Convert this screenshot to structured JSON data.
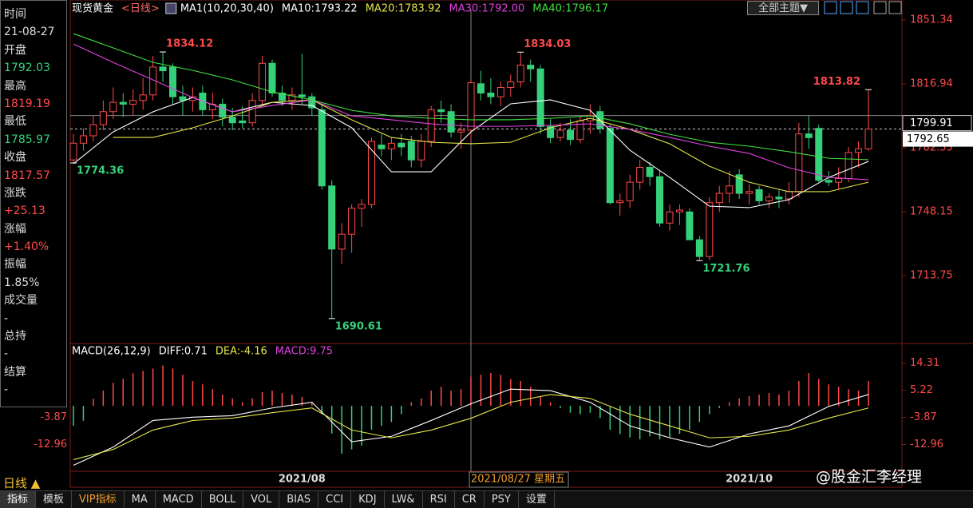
{
  "chart_data": [
    {
      "type": "candlestick",
      "title": "现货黄金",
      "period": "<日线>",
      "indicator": "MA1(10,20,30,40)",
      "categories": [
        null,
        null,
        null,
        null,
        null,
        null,
        null,
        null,
        null,
        null,
        null,
        null,
        null,
        null,
        null,
        null,
        null,
        null,
        null,
        null,
        null,
        null,
        null,
        "2021/08",
        null,
        null,
        null,
        null,
        null,
        null,
        null,
        null,
        null,
        null,
        null,
        null,
        null,
        null,
        null,
        null,
        "2021/08/27 星期五",
        null,
        null,
        null,
        null,
        null,
        null,
        null,
        null,
        null,
        null,
        null,
        null,
        null,
        null,
        null,
        null,
        null,
        null,
        null,
        null,
        null,
        null,
        null,
        null,
        null,
        null,
        null,
        "2021/10",
        null,
        null,
        null,
        null,
        null,
        null,
        null,
        null,
        null,
        null,
        null,
        null
      ],
      "open": [
        1776,
        1785,
        1789,
        1795,
        1802,
        1807,
        1806,
        1808,
        1811,
        1826,
        1826,
        1810,
        1808,
        1812,
        1803,
        1806,
        1799,
        1797,
        1796,
        1808,
        1828,
        1812,
        1808,
        1811,
        1810,
        1803,
        1762,
        1728,
        1736,
        1750,
        1752,
        1784,
        1782,
        1785,
        1786,
        1776,
        1786,
        1803,
        1802,
        1791,
        1792.03,
        1817,
        1812,
        1810,
        1815,
        1818,
        1827,
        1825,
        1794,
        1788,
        1792,
        1787,
        1797,
        1802,
        1793,
        1753,
        1754,
        1764,
        1772,
        1767,
        1742,
        1748,
        1748,
        1733,
        1724,
        1753,
        1758,
        1768,
        1758,
        1760,
        1754,
        1756,
        1755,
        1759,
        1790,
        1793,
        1765,
        1764,
        1766,
        1780,
        1782
      ],
      "high": [
        1790,
        1793,
        1800,
        1808,
        1815,
        1812,
        1814,
        1820,
        1832,
        1834.12,
        1828,
        1816,
        1815,
        1816,
        1812,
        1809,
        1804,
        1805,
        1812,
        1832,
        1830,
        1816,
        1815,
        1833,
        1812,
        1806,
        1765,
        1742,
        1752,
        1755,
        1788,
        1790,
        1788,
        1790,
        1789,
        1790,
        1805,
        1808,
        1806,
        1796,
        1819.19,
        1824,
        1820,
        1818,
        1822,
        1834.03,
        1830,
        1827,
        1798,
        1796,
        1798,
        1800,
        1806,
        1805,
        1795,
        1758,
        1768,
        1776,
        1775,
        1770,
        1752,
        1752,
        1750,
        1735,
        1756,
        1762,
        1770,
        1771,
        1763,
        1762,
        1758,
        1760,
        1764,
        1796,
        1800,
        1795,
        1770,
        1772,
        1783,
        1786,
        1813.82
      ],
      "low": [
        1774.36,
        1781,
        1786,
        1792,
        1798,
        1799,
        1800,
        1803,
        1808,
        1818,
        1806,
        1800,
        1802,
        1800,
        1798,
        1794,
        1792,
        1793,
        1794,
        1805,
        1810,
        1805,
        1803,
        1806,
        1800,
        1760,
        1690.61,
        1720,
        1726,
        1740,
        1750,
        1778,
        1776,
        1778,
        1772,
        1772,
        1783,
        1796,
        1788,
        1782,
        1785.97,
        1808,
        1806,
        1805,
        1810,
        1815,
        1818,
        1790,
        1785,
        1786,
        1784,
        1785,
        1790,
        1790,
        1752,
        1746,
        1750,
        1760,
        1762,
        1740,
        1738,
        1741,
        1733,
        1721.76,
        1722,
        1748,
        1753,
        1755,
        1752,
        1752,
        1750,
        1750,
        1752,
        1756,
        1782,
        1764,
        1762,
        1760,
        1764,
        1772,
        1781
      ],
      "close": [
        1785,
        1789,
        1795,
        1802,
        1807,
        1806,
        1808,
        1811,
        1826,
        1824,
        1810,
        1808,
        1810,
        1803,
        1806,
        1799,
        1796,
        1796,
        1808,
        1828,
        1812,
        1808,
        1811,
        1810,
        1804,
        1762,
        1728,
        1736,
        1750,
        1752,
        1786,
        1782,
        1785,
        1783,
        1776,
        1786,
        1803,
        1802,
        1791,
        1792,
        1817.57,
        1812,
        1810,
        1815,
        1818,
        1827,
        1825,
        1794,
        1788,
        1792,
        1787,
        1797,
        1800,
        1793,
        1753,
        1754,
        1764,
        1772,
        1767,
        1742,
        1748,
        1749,
        1733,
        1724,
        1753,
        1758,
        1762,
        1758,
        1759,
        1754,
        1756,
        1755,
        1759,
        1790,
        1788,
        1765,
        1764,
        1766,
        1780,
        1782,
        1792.65
      ],
      "up_color": "#ff4a4a",
      "down_color": "#35d07a",
      "ylim": [
        1677.19,
        1856.93
      ],
      "yticks": [
        1851.34,
        1816.94,
        1782.55,
        1748.15,
        1713.75
      ],
      "overlays": [
        {
          "name": "MA10:1793.22",
          "color": "#ffffff",
          "x": [
            0,
            4,
            8,
            12,
            16,
            20,
            24,
            28,
            32,
            36,
            40,
            44,
            48,
            52,
            56,
            60,
            64,
            68,
            72,
            76,
            80
          ],
          "values": [
            1773.9,
            1791.1,
            1801.9,
            1809.6,
            1801.9,
            1807.0,
            1805.3,
            1793.3,
            1769.6,
            1769.6,
            1791.1,
            1806.2,
            1808.3,
            1802.7,
            1781.2,
            1766.6,
            1751.1,
            1750.3,
            1754.6,
            1766.6,
            1775.2
          ]
        },
        {
          "name": "MA20:1783.92",
          "color": "#e6e64a",
          "x": [
            4,
            8,
            12,
            16,
            20,
            24,
            28,
            32,
            36,
            40,
            44,
            48,
            52,
            56,
            60,
            64,
            68,
            72,
            76,
            80
          ],
          "values": [
            1788.1,
            1788.1,
            1793.3,
            1799.7,
            1807.0,
            1808.3,
            1797.6,
            1788.1,
            1785.5,
            1784.7,
            1785.5,
            1793.3,
            1798.4,
            1792.4,
            1784.7,
            1772.6,
            1764.0,
            1758.9,
            1758.9,
            1764.0
          ]
        },
        {
          "name": "MA30:1792.00",
          "color": "#e040e0",
          "x": [
            0,
            4,
            8,
            12,
            16,
            20,
            24,
            28,
            32,
            36,
            40,
            44,
            48,
            52,
            56,
            60,
            64,
            68,
            72,
            76,
            80
          ],
          "values": [
            1838.4,
            1828.5,
            1819.1,
            1809.6,
            1801.9,
            1805.3,
            1808.3,
            1799.7,
            1797.6,
            1795.4,
            1794.1,
            1794.1,
            1794.6,
            1795.4,
            1792.4,
            1788.1,
            1783.4,
            1779.5,
            1771.8,
            1766.6,
            1765.3
          ]
        },
        {
          "name": "MA40:1796.17",
          "color": "#40e040",
          "x": [
            0,
            4,
            8,
            12,
            16,
            20,
            24,
            28,
            32,
            36,
            40,
            44,
            48,
            52,
            56,
            60,
            64,
            68,
            72,
            76,
            80
          ],
          "values": [
            1844.0,
            1836.3,
            1828.5,
            1824.2,
            1819.1,
            1812.6,
            1808.3,
            1802.7,
            1799.7,
            1798.4,
            1797.6,
            1797.6,
            1798.4,
            1799.7,
            1795.4,
            1789.8,
            1785.5,
            1783.4,
            1780.4,
            1776.9,
            1776.1
          ]
        }
      ],
      "annotations": [
        {
          "x": 9,
          "value": 1834.12,
          "color": "#ff4a4a"
        },
        {
          "x": 0,
          "value": 1774.36,
          "color": "#35d07a"
        },
        {
          "x": 26,
          "value": 1690.61,
          "color": "#35d07a"
        },
        {
          "x": 45,
          "value": 1834.03,
          "color": "#ff4a4a"
        },
        {
          "x": 63,
          "value": 1721.76,
          "color": "#35d07a"
        },
        {
          "x": 80,
          "value": 1813.82,
          "color": "#ff4a4a"
        }
      ],
      "crosshair": {
        "x": 40,
        "value": 1799.91
      }
    },
    {
      "type": "macd",
      "title": "MACD(26,12,9)",
      "histogram": {
        "name": "MACD:9.75",
        "color": "#e040e0",
        "up_color": "#ff4a4a",
        "down_color": "#35d07a",
        "values": [
          -6.7,
          -5.0,
          2.4,
          5.1,
          7.7,
          9.1,
          10.9,
          11.7,
          12.5,
          13.5,
          12.5,
          10.4,
          8.3,
          7.2,
          5.6,
          3.8,
          2.5,
          1.2,
          2.5,
          4.6,
          5.1,
          4.3,
          3.8,
          3.0,
          1.2,
          -2.8,
          -9.3,
          -16.0,
          -14.6,
          -13.3,
          -8.0,
          -6.7,
          -5.4,
          -2.8,
          1.2,
          2.5,
          5.1,
          6.4,
          5.1,
          5.6,
          9.75,
          10.4,
          11.0,
          10.4,
          9.0,
          8.3,
          6.4,
          3.0,
          1.2,
          -0.7,
          -2.3,
          -2.8,
          -2.3,
          -4.1,
          -8.0,
          -9.4,
          -10.6,
          -11.2,
          -10.2,
          -11.2,
          -10.6,
          -9.4,
          -8.0,
          -5.4,
          -2.8,
          -0.7,
          1.2,
          2.5,
          3.3,
          3.8,
          4.3,
          3.8,
          5.1,
          8.3,
          11.0,
          9.0,
          7.2,
          6.4,
          5.6,
          5.1,
          8.3
        ]
      },
      "series": [
        {
          "name": "DIFF:0.71",
          "color": "#ffffff",
          "x": [
            0,
            4,
            8,
            12,
            16,
            20,
            24,
            28,
            32,
            36,
            40,
            44,
            48,
            52,
            56,
            60,
            64,
            68,
            72,
            76,
            80
          ],
          "values": [
            -19.9,
            -13.8,
            -4.9,
            -3.8,
            -3.3,
            -0.7,
            1.2,
            -12.0,
            -10.2,
            -4.9,
            0.71,
            5.6,
            5.1,
            1.2,
            -6.7,
            -10.7,
            -13.8,
            -9.4,
            -6.7,
            -0.2,
            3.8
          ]
        },
        {
          "name": "DEA:-4.16",
          "color": "#e6e64a",
          "x": [
            0,
            4,
            8,
            12,
            16,
            20,
            24,
            28,
            32,
            36,
            40,
            44,
            48,
            52,
            56,
            60,
            64,
            68,
            72,
            76,
            80
          ],
          "values": [
            -18.0,
            -14.6,
            -8.1,
            -4.9,
            -4.1,
            -2.3,
            -0.7,
            -8.1,
            -10.7,
            -8.1,
            -4.16,
            1.2,
            3.8,
            2.5,
            -2.8,
            -6.7,
            -10.7,
            -10.2,
            -8.1,
            -4.1,
            -0.7
          ]
        }
      ],
      "ylim": [
        -21.9,
        20.36
      ],
      "yticks": [
        14.31,
        5.22,
        -3.87,
        -12.96
      ]
    }
  ],
  "sidebar": [
    {
      "label": "时间",
      "value": "21-08-27",
      "color": "#dddddd"
    },
    {
      "label": "开盘",
      "value": "1792.03",
      "color": "#35d07a"
    },
    {
      "label": "最高",
      "value": "1819.19",
      "color": "#ff4a4a"
    },
    {
      "label": "最低",
      "value": "1785.97",
      "color": "#35d07a"
    },
    {
      "label": "收盘",
      "value": "1817.57",
      "color": "#ff4a4a"
    },
    {
      "label": "涨跌",
      "value": "+25.13",
      "color": "#ff4a4a"
    },
    {
      "label": "涨幅",
      "value": "+1.40%",
      "color": "#ff4a4a"
    },
    {
      "label": "振幅",
      "value": "1.85%",
      "color": "#dddddd"
    },
    {
      "label": "成交量",
      "value": "-",
      "color": "#dddddd"
    },
    {
      "label": "总持",
      "value": "-",
      "color": "#dddddd"
    },
    {
      "label": "结算",
      "value": "-",
      "color": "#dddddd"
    }
  ],
  "period_selector": "日线 ▲",
  "theme_button": "全部主题▼",
  "tabs": [
    "指标",
    "模板",
    "VIP指标",
    "MA",
    "MACD",
    "BOLL",
    "VOL",
    "BIAS",
    "CCI",
    "KDJ",
    "LW&",
    "RSI",
    "CR",
    "PSY",
    "设置"
  ],
  "watermark": "@股金汇李经理"
}
